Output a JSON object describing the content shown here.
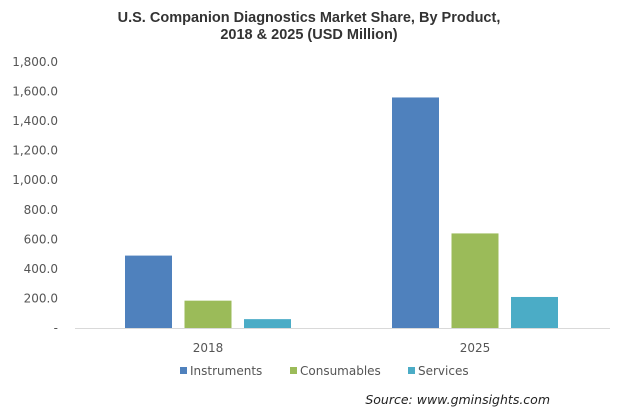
{
  "chart_data": {
    "type": "bar",
    "title_line1": "U.S. Companion Diagnostics Market Share, By Product,",
    "title_line2": "2018 & 2025 (USD Million)",
    "xlabel": "",
    "ylabel": "",
    "categories": [
      "2018",
      "2025"
    ],
    "series": [
      {
        "name": "Instruments",
        "color": "#4f81bd",
        "values": [
          490,
          1560
        ]
      },
      {
        "name": "Consumables",
        "color": "#9bbb59",
        "values": [
          185,
          640
        ]
      },
      {
        "name": "Services",
        "color": "#4bacc6",
        "values": [
          60,
          210
        ]
      }
    ],
    "ylim": [
      0,
      1800
    ],
    "yticks": [
      0,
      200,
      400,
      600,
      800,
      1000,
      1200,
      1400,
      1600,
      1800
    ],
    "ytick_labels": [
      "-",
      "200.0",
      "400.0",
      "600.0",
      "800.0",
      "1,000.0",
      "1,200.0",
      "1,400.0",
      "1,600.0",
      "1,800.0"
    ],
    "grid": false,
    "legend_position": "bottom"
  },
  "source": "Source: www.gminsights.com"
}
